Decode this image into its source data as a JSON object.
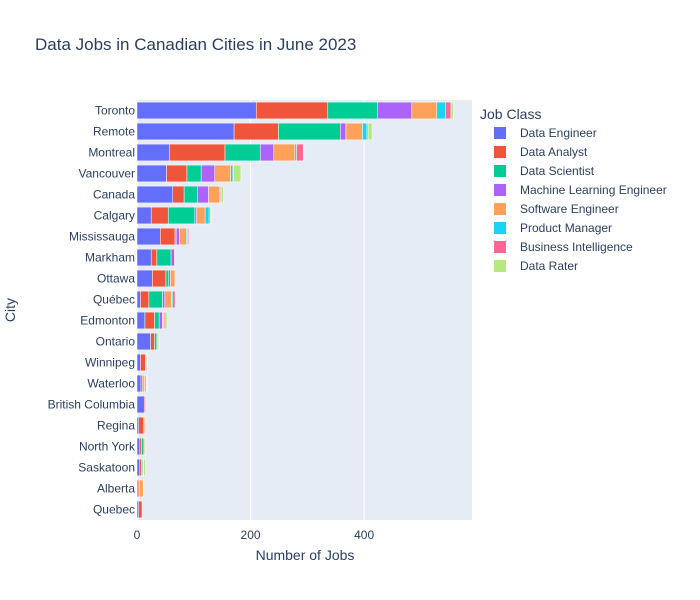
{
  "chart_data": {
    "type": "bar",
    "orientation": "horizontal",
    "barmode": "stack",
    "title": "Data Jobs in Canadian Cities in June 2023",
    "xlabel": "Number of Jobs",
    "ylabel": "City",
    "xlim": [
      0,
      590
    ],
    "xticks": [
      0,
      200,
      400
    ],
    "legend_title": "Job Class",
    "legend_position": "right",
    "plot_background": "#e5ecf6",
    "grid": true,
    "categories": [
      "Toronto",
      "Remote",
      "Montreal",
      "Vancouver",
      "Canada",
      "Calgary",
      "Mississauga",
      "Markham",
      "Ottawa",
      "Québec",
      "Edmonton",
      "Ontario",
      "Winnipeg",
      "Waterloo",
      "British Columbia",
      "Regina",
      "North York",
      "Saskatoon",
      "Alberta",
      "Quebec"
    ],
    "series": [
      {
        "name": "Data Engineer",
        "color": "#636efa",
        "values": [
          210,
          171,
          57,
          52,
          63,
          25,
          41,
          25,
          27,
          6,
          14,
          24,
          6,
          7,
          13,
          3,
          5,
          5,
          2,
          3
        ]
      },
      {
        "name": "Data Analyst",
        "color": "#EF553B",
        "values": [
          126,
          78,
          98,
          36,
          20,
          30,
          26,
          10,
          24,
          15,
          17,
          7,
          9,
          3,
          2,
          9,
          3,
          3,
          2,
          6
        ]
      },
      {
        "name": "Data Scientist",
        "color": "#00cc96",
        "values": [
          88,
          109,
          62,
          25,
          24,
          47,
          2,
          25,
          5,
          24,
          8,
          4,
          0,
          2,
          0,
          0,
          4,
          2,
          0,
          0
        ]
      },
      {
        "name": "Machine Learning Engineer",
        "color": "#ab63fa",
        "values": [
          60,
          10,
          24,
          24,
          19,
          3,
          6,
          6,
          3,
          4,
          6,
          1,
          0,
          1,
          1,
          0,
          1,
          0,
          0,
          0
        ]
      },
      {
        "name": "Software Engineer",
        "color": "#FFA15A",
        "values": [
          44,
          29,
          37,
          28,
          19,
          15,
          12,
          0,
          8,
          12,
          2,
          2,
          2,
          3,
          0,
          2,
          2,
          1,
          7,
          0
        ]
      },
      {
        "name": "Product Manager",
        "color": "#19d3f3",
        "values": [
          15,
          8,
          3,
          4,
          2,
          7,
          2,
          0,
          0,
          2,
          0,
          1,
          1,
          1,
          0,
          0,
          0,
          0,
          0,
          0
        ]
      },
      {
        "name": "Business Intelligence",
        "color": "#FF6692",
        "values": [
          10,
          2,
          12,
          1,
          2,
          2,
          2,
          1,
          1,
          4,
          2,
          0,
          0,
          1,
          0,
          1,
          0,
          1,
          0,
          1
        ]
      },
      {
        "name": "Data Rater",
        "color": "#B6E880",
        "values": [
          4,
          7,
          1,
          13,
          3,
          2,
          0,
          0,
          0,
          0,
          4,
          0,
          0,
          0,
          0,
          0,
          1,
          3,
          1,
          0
        ]
      }
    ]
  }
}
